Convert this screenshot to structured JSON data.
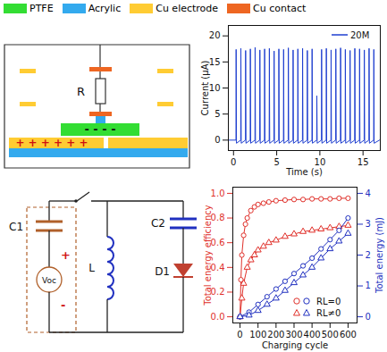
{
  "legend": [
    {
      "label": "PTFE",
      "color": "#33dd33"
    },
    {
      "label": "Acrylic",
      "color": "#33aaee"
    },
    {
      "label": "Cu electrode",
      "color": "#ffcc33"
    },
    {
      "label": "Cu contact",
      "color": "#ee6622"
    }
  ],
  "structure_diagram": {
    "resistor_label": "R",
    "positive_charges": "+ + + + + +",
    "negative_charges": "- - - -"
  },
  "circuit": {
    "components": [
      {
        "label": "C1"
      },
      {
        "label": "Voc"
      },
      {
        "label": "L"
      },
      {
        "label": "C2"
      },
      {
        "label": "D1"
      }
    ],
    "polarity": [
      "+",
      "-"
    ]
  },
  "chart_data": [
    {
      "type": "line",
      "xlabel": "Time (s)",
      "ylabel": "Current (μA)",
      "xlim": [
        -0.6,
        17
      ],
      "xticks": [
        0,
        5,
        10,
        15
      ],
      "ylim": [
        -2,
        22
      ],
      "yticks": [
        0,
        5,
        10,
        15,
        20
      ],
      "legend": "top-right",
      "x": [
        -0.5,
        0.28,
        0.3,
        0.34,
        0.83,
        0.85,
        0.89,
        1.38,
        1.4,
        1.44,
        1.93,
        1.95,
        1.99,
        2.48,
        2.5,
        2.54,
        3.03,
        3.05,
        3.09,
        3.58,
        3.6,
        3.64,
        4.13,
        4.15,
        4.19,
        4.68,
        4.7,
        4.74,
        5.23,
        5.25,
        5.29,
        5.78,
        5.8,
        5.84,
        6.33,
        6.35,
        6.39,
        6.88,
        6.9,
        6.94,
        7.43,
        7.45,
        7.49,
        7.98,
        8.0,
        8.04,
        8.53,
        8.55,
        8.59,
        9.08,
        9.1,
        9.14,
        9.63,
        9.65,
        9.69,
        10.18,
        10.2,
        10.24,
        10.73,
        10.75,
        10.79,
        11.28,
        11.3,
        11.34,
        11.83,
        11.85,
        11.89,
        12.38,
        12.4,
        12.44,
        12.93,
        12.95,
        12.99,
        13.48,
        13.5,
        13.54,
        14.03,
        14.05,
        14.09,
        14.58,
        14.6,
        14.64,
        15.13,
        15.15,
        15.19,
        15.68,
        15.7,
        15.74,
        16.23,
        16.25,
        16.29,
        16.9
      ],
      "series": [
        {
          "name": "20M",
          "color": "#1f3fd0",
          "line_style": "solid",
          "values": [
            0,
            0,
            17.4,
            -0.6,
            0,
            17.6,
            -0.6,
            0,
            17.2,
            -0.6,
            0,
            17.5,
            -0.6,
            0,
            17.8,
            -0.6,
            0,
            17.3,
            -0.6,
            0,
            17.5,
            -0.6,
            0,
            17.6,
            -0.6,
            0,
            17.1,
            -0.6,
            0,
            17.5,
            -0.6,
            0,
            17.4,
            -0.6,
            0,
            17.7,
            -0.6,
            0,
            17.3,
            -0.6,
            0,
            17.5,
            -0.6,
            0,
            17.6,
            -0.6,
            0,
            17.2,
            -0.6,
            0,
            17.5,
            -0.6,
            0,
            8.5,
            -0.6,
            0,
            17.4,
            -0.6,
            0,
            17.6,
            -0.6,
            0,
            17.3,
            -0.6,
            0,
            17.5,
            -0.6,
            0,
            17.7,
            -0.6,
            0,
            17.4,
            -0.6,
            0,
            17.2,
            -0.6,
            0,
            17.6,
            -0.6,
            0,
            17.5,
            -0.6,
            0,
            17.3,
            -0.6,
            0,
            17.6,
            -0.6,
            0,
            17.4,
            -0.6,
            0
          ]
        }
      ]
    },
    {
      "type": "line",
      "xlabel": "Charging cycle",
      "ylabel": "Total energy efficiency",
      "y2label": "Total energy (mJ)",
      "xlim": [
        -40,
        650
      ],
      "xticks": [
        0,
        100,
        200,
        300,
        400,
        500,
        600
      ],
      "ylim": [
        -0.05,
        1.05
      ],
      "yticks": [
        {
          "value": 0,
          "label": "0.0"
        },
        {
          "value": 0.2,
          "label": "0.2"
        },
        {
          "value": 0.4,
          "label": "0.4"
        },
        {
          "value": 0.6,
          "label": "0.6"
        },
        {
          "value": 0.8,
          "label": "0.8"
        },
        {
          "value": 1,
          "label": "1.0"
        }
      ],
      "y2lim": [
        -0.2,
        4.2
      ],
      "y2ticks": [
        0,
        1,
        2,
        3,
        4
      ],
      "legend": "bottom-right",
      "series": [
        {
          "name": "RL=0",
          "color": "#e0302a",
          "marker": "circle",
          "line_style": "solid",
          "x": [
            0,
            5,
            10,
            20,
            30,
            40,
            60,
            80,
            100,
            130,
            160,
            200,
            250,
            300,
            350,
            400,
            450,
            500,
            550,
            600
          ],
          "values": [
            0,
            0.3,
            0.5,
            0.66,
            0.75,
            0.8,
            0.86,
            0.89,
            0.91,
            0.92,
            0.93,
            0.94,
            0.945,
            0.95,
            0.95,
            0.955,
            0.955,
            0.955,
            0.96,
            0.96
          ]
        },
        {
          "name": "RL≠0",
          "color": "#e0302a",
          "marker": "triangle",
          "line_style": "solid",
          "x": [
            0,
            10,
            20,
            40,
            60,
            80,
            100,
            130,
            160,
            200,
            250,
            300,
            350,
            400,
            450,
            500,
            550,
            600
          ],
          "values": [
            0,
            0.15,
            0.27,
            0.4,
            0.46,
            0.5,
            0.54,
            0.57,
            0.6,
            0.62,
            0.65,
            0.67,
            0.69,
            0.7,
            0.71,
            0.72,
            0.73,
            0.74
          ]
        },
        {
          "name": "RL=0",
          "color": "#2030c0",
          "marker": "circle",
          "line_style": "solid",
          "axis": "y2",
          "x": [
            0,
            50,
            100,
            150,
            200,
            250,
            300,
            350,
            400,
            450,
            500,
            550,
            600
          ],
          "values": [
            0,
            0.15,
            0.4,
            0.65,
            0.9,
            1.15,
            1.4,
            1.65,
            1.9,
            2.2,
            2.5,
            2.8,
            3.2
          ]
        },
        {
          "name": "RL≠0",
          "color": "#2030c0",
          "marker": "triangle",
          "line_style": "solid",
          "axis": "y2",
          "x": [
            0,
            50,
            100,
            150,
            200,
            250,
            300,
            350,
            400,
            450,
            500,
            550,
            600
          ],
          "values": [
            0,
            0.05,
            0.2,
            0.4,
            0.6,
            0.85,
            1.1,
            1.35,
            1.6,
            1.9,
            2.2,
            2.45,
            2.7
          ]
        }
      ]
    }
  ]
}
